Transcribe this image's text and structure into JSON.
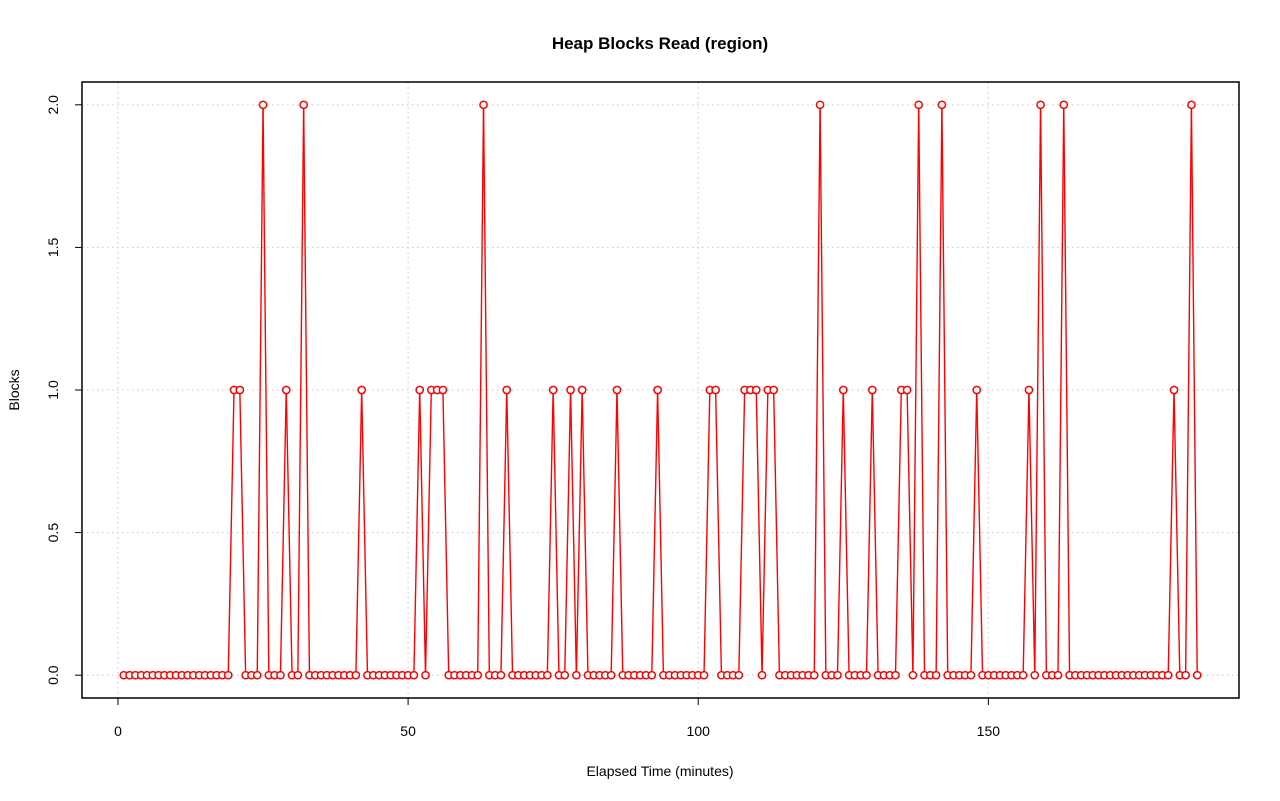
{
  "chart_data": {
    "type": "line",
    "title": "Heap Blocks Read (region)",
    "xlabel": "Elapsed Time (minutes)",
    "ylabel": "Blocks",
    "xlim": [
      -6.2,
      193.2
    ],
    "ylim": [
      -0.08,
      2.08
    ],
    "x_ticks": [
      0,
      50,
      100,
      150
    ],
    "x_tick_labels": [
      "0",
      "50",
      "100",
      "150"
    ],
    "y_ticks": [
      0.0,
      0.5,
      1.0,
      1.5,
      2.0
    ],
    "y_tick_labels": [
      "0.0",
      "0.5",
      "1.0",
      "1.5",
      "2.0"
    ],
    "grid": true,
    "line_color": "#ff0000",
    "marker": "open-circle",
    "x_start": 1,
    "x_step": 1,
    "values": [
      0,
      0,
      0,
      0,
      0,
      0,
      0,
      0,
      0,
      0,
      0,
      0,
      0,
      0,
      0,
      0,
      0,
      0,
      0,
      1,
      1,
      0,
      0,
      0,
      2,
      0,
      0,
      0,
      1,
      0,
      0,
      2,
      0,
      0,
      0,
      0,
      0,
      0,
      0,
      0,
      0,
      1,
      0,
      0,
      0,
      0,
      0,
      0,
      0,
      0,
      0,
      1,
      0,
      1,
      1,
      1,
      0,
      0,
      0,
      0,
      0,
      0,
      2,
      0,
      0,
      0,
      1,
      0,
      0,
      0,
      0,
      0,
      0,
      0,
      1,
      0,
      0,
      1,
      0,
      1,
      0,
      0,
      0,
      0,
      0,
      1,
      0,
      0,
      0,
      0,
      0,
      0,
      1,
      0,
      0,
      0,
      0,
      0,
      0,
      0,
      0,
      1,
      1,
      0,
      0,
      0,
      0,
      1,
      1,
      1,
      0,
      1,
      1,
      0,
      0,
      0,
      0,
      0,
      0,
      0,
      2,
      0,
      0,
      0,
      1,
      0,
      0,
      0,
      0,
      1,
      0,
      0,
      0,
      0,
      1,
      1,
      0,
      2,
      0,
      0,
      0,
      2,
      0,
      0,
      0,
      0,
      0,
      1,
      0,
      0,
      0,
      0,
      0,
      0,
      0,
      0,
      1,
      0,
      2,
      0,
      0,
      0,
      2,
      0,
      0,
      0,
      0,
      0,
      0,
      0,
      0,
      0,
      0,
      0,
      0,
      0,
      0,
      0,
      0,
      0,
      0,
      1,
      0,
      0,
      2,
      0
    ]
  }
}
